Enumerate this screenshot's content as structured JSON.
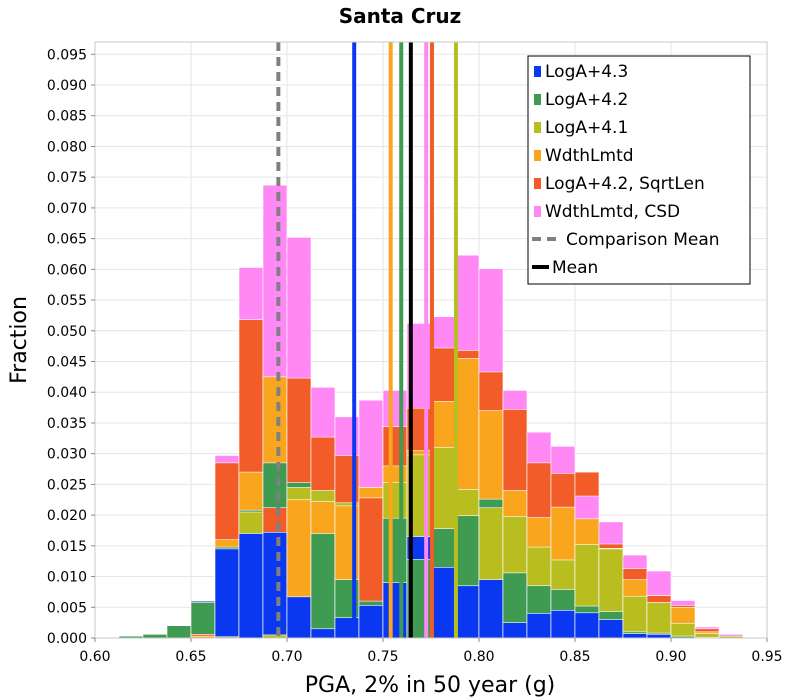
{
  "chart_data": {
    "type": "bar",
    "title": "Santa Cruz",
    "xlabel": "PGA, 2% in 50 year (g)",
    "ylabel": "Fraction",
    "xlim": [
      0.6,
      0.95
    ],
    "ylim": [
      0,
      0.097
    ],
    "grid": true,
    "legend_position": "top-right",
    "x_ticks": [
      "0.60",
      "0.65",
      "0.70",
      "0.75",
      "0.80",
      "0.85",
      "0.90",
      "0.95"
    ],
    "y_ticks": [
      "0.000",
      "0.005",
      "0.010",
      "0.015",
      "0.020",
      "0.025",
      "0.030",
      "0.035",
      "0.040",
      "0.045",
      "0.050",
      "0.055",
      "0.060",
      "0.065",
      "0.070",
      "0.075",
      "0.080",
      "0.085",
      "0.090",
      "0.095"
    ],
    "bin_width": 0.0125,
    "bin_starts": [
      0.6125,
      0.625,
      0.6375,
      0.65,
      0.6625,
      0.675,
      0.6875,
      0.7,
      0.7125,
      0.725,
      0.7375,
      0.75,
      0.7625,
      0.775,
      0.7875,
      0.8,
      0.8125,
      0.825,
      0.8375,
      0.85,
      0.8625,
      0.875,
      0.8875,
      0.9,
      0.9125,
      0.925
    ],
    "series": [
      {
        "name": "LogA+4.3",
        "color": "#0a38f0",
        "values": [
          0.0003,
          0.0006,
          0.002,
          0.006,
          0.0145,
          0.017,
          0.0172,
          0.0067,
          0.0015,
          0.0033,
          0.0053,
          0.009,
          0.0165,
          0.0115,
          0.0085,
          0.0095,
          0.0025,
          0.004,
          0.0045,
          0.0041,
          0.003,
          0.0007,
          0.0006,
          0.0003,
          0.0001,
          0.0
        ]
      },
      {
        "name": "LogA+4.2",
        "color": "#3f9a52",
        "values": [
          0.0003,
          0.0006,
          0.002,
          0.0058,
          0.0148,
          0.0208,
          0.0285,
          0.0253,
          0.017,
          0.0095,
          0.006,
          0.0195,
          0.0128,
          0.0178,
          0.0199,
          0.0226,
          0.0106,
          0.0085,
          0.0079,
          0.0052,
          0.0043,
          0.001,
          0.0008,
          0.0003,
          0.0001,
          0.0
        ]
      },
      {
        "name": "LogA+4.1",
        "color": "#b8be20",
        "values": [
          0.0,
          0.0,
          0.0,
          0.0,
          0.0002,
          0.0205,
          0.0005,
          0.0245,
          0.024,
          0.022,
          0.0245,
          0.0253,
          0.0298,
          0.031,
          0.0242,
          0.0212,
          0.0198,
          0.0148,
          0.0127,
          0.0152,
          0.0145,
          0.0068,
          0.0058,
          0.0024,
          0.0007,
          0.0003
        ]
      },
      {
        "name": "WdthLmtd",
        "color": "#f9a51e",
        "values": [
          0.0,
          0.0,
          0.0,
          0.0003,
          0.016,
          0.027,
          0.0425,
          0.0225,
          0.0222,
          0.0215,
          0.0245,
          0.028,
          0.0305,
          0.0385,
          0.0455,
          0.037,
          0.024,
          0.0196,
          0.0213,
          0.0194,
          0.0146,
          0.0095,
          0.0069,
          0.005,
          0.001,
          0.0
        ]
      },
      {
        "name": "LogA+4.2, SqrtLen",
        "color": "#f15c28",
        "values": [
          0.0,
          0.0,
          0.0,
          0.0006,
          0.0285,
          0.0518,
          0.0212,
          0.0423,
          0.0327,
          0.0297,
          0.0228,
          0.0344,
          0.0374,
          0.0472,
          0.0468,
          0.0433,
          0.0372,
          0.0285,
          0.0268,
          0.027,
          0.0153,
          0.0113,
          0.0069,
          0.0053,
          0.0015,
          0.0
        ]
      },
      {
        "name": "WdthLmtd, CSD",
        "color": "#ff88f4",
        "values": [
          0.0,
          0.0,
          0.0,
          0.0,
          0.0297,
          0.0603,
          0.0737,
          0.0652,
          0.0408,
          0.036,
          0.0387,
          0.0403,
          0.0512,
          0.0523,
          0.0623,
          0.0601,
          0.0403,
          0.0335,
          0.0312,
          0.0231,
          0.0189,
          0.0135,
          0.0109,
          0.0061,
          0.0018,
          0.0006
        ]
      }
    ],
    "vertical_lines": [
      {
        "name": "LogA+4.3",
        "x": 0.735,
        "color": "#0a38f0",
        "style": "solid"
      },
      {
        "name": "LogA+4.2",
        "x": 0.7595,
        "color": "#3f9a52",
        "style": "solid"
      },
      {
        "name": "LogA+4.1",
        "x": 0.788,
        "color": "#b8be20",
        "style": "solid"
      },
      {
        "name": "WdthLmtd",
        "x": 0.754,
        "color": "#f9a51e",
        "style": "solid"
      },
      {
        "name": "LogA+4.2, SqrtLen",
        "x": 0.7755,
        "color": "#f15c28",
        "style": "solid"
      },
      {
        "name": "WdthLmtd, CSD",
        "x": 0.7725,
        "color": "#ff88f4",
        "style": "solid"
      },
      {
        "name": "Comparison Mean",
        "x": 0.6955,
        "color": "#808080",
        "style": "dashed"
      },
      {
        "name": "Mean",
        "x": 0.7645,
        "color": "#000000",
        "style": "solid"
      }
    ],
    "legend": [
      {
        "label": "LogA+4.3",
        "color": "#0a38f0",
        "kind": "box"
      },
      {
        "label": "LogA+4.2",
        "color": "#3f9a52",
        "kind": "box"
      },
      {
        "label": "LogA+4.1",
        "color": "#b8be20",
        "kind": "box"
      },
      {
        "label": "WdthLmtd",
        "color": "#f9a51e",
        "kind": "box"
      },
      {
        "label": "LogA+4.2, SqrtLen",
        "color": "#f15c28",
        "kind": "box"
      },
      {
        "label": "WdthLmtd, CSD",
        "color": "#ff88f4",
        "kind": "box"
      },
      {
        "label": "Comparison Mean",
        "color": "#808080",
        "kind": "dashed"
      },
      {
        "label": "Mean",
        "color": "#000000",
        "kind": "line"
      }
    ]
  }
}
